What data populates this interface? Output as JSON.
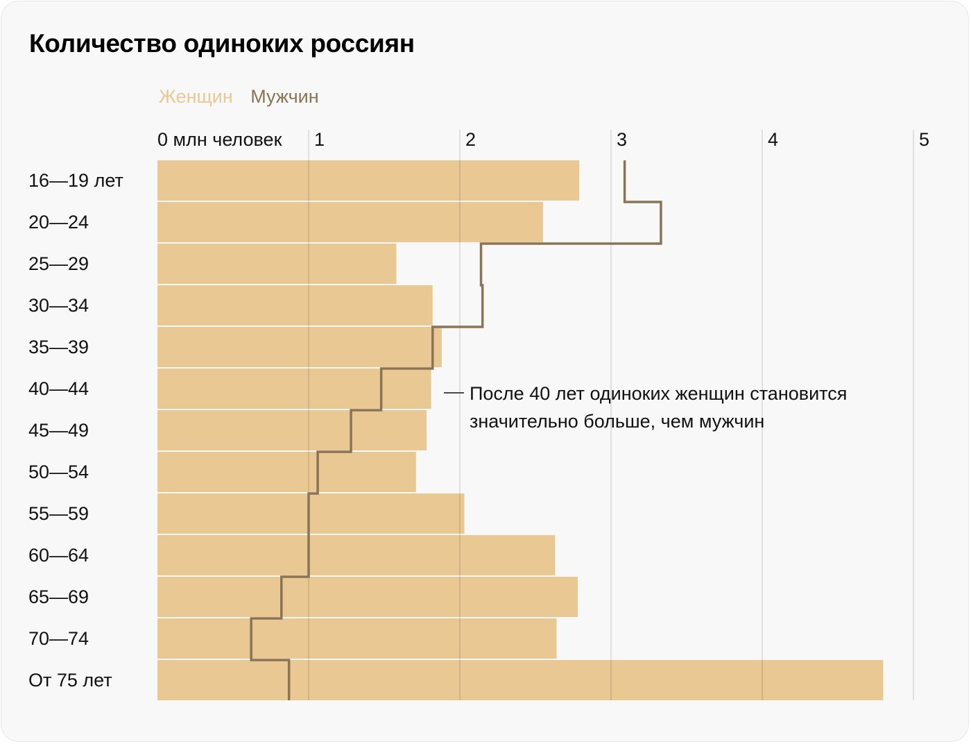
{
  "chart_data": {
    "type": "bar",
    "title": "Количество одиноких россиян",
    "xlabel": "млн человек",
    "xlim": [
      0,
      5
    ],
    "xticks": [
      "0 млн человек",
      "1",
      "2",
      "3",
      "4",
      "5"
    ],
    "grid": true,
    "legend_placement": "top-left",
    "categories": [
      "16—19 лет",
      "20—24",
      "25—29",
      "30—34",
      "35—39",
      "40—44",
      "45—49",
      "50—54",
      "55—59",
      "60—64",
      "65—69",
      "70—74",
      "От 75 лет"
    ],
    "series": [
      {
        "name": "Женщин",
        "style": "bar",
        "color": "#e9c893",
        "values": [
          2.79,
          2.55,
          1.58,
          1.82,
          1.88,
          1.81,
          1.78,
          1.71,
          2.03,
          2.63,
          2.78,
          2.64,
          4.8
        ]
      },
      {
        "name": "Мужчин",
        "style": "step-line",
        "color": "#8b7355",
        "values": [
          3.09,
          3.33,
          2.14,
          2.15,
          1.82,
          1.48,
          1.28,
          1.06,
          1.0,
          1.0,
          0.82,
          0.62,
          0.87
        ]
      }
    ],
    "annotations": [
      {
        "category": "40—44",
        "lines": [
          "После 40 лет одиноких женщин становится",
          "значительно больше, чем мужчин"
        ]
      }
    ]
  }
}
